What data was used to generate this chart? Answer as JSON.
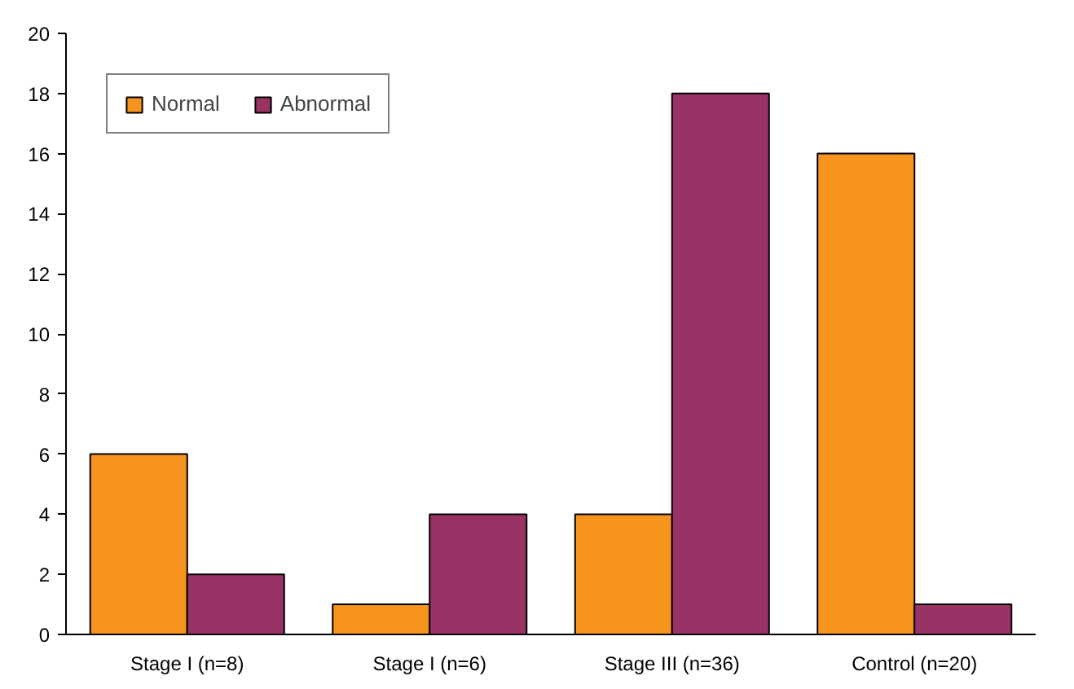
{
  "chart_data": {
    "type": "bar",
    "categories": [
      "Stage I (n=8)",
      "Stage I (n=6)",
      "Stage III (n=36)",
      "Control (n=20)"
    ],
    "series": [
      {
        "name": "Normal",
        "color": "#f7941d",
        "values": [
          6,
          1,
          4,
          16
        ]
      },
      {
        "name": "Abnormal",
        "color": "#993366",
        "values": [
          2,
          4,
          18,
          1
        ]
      }
    ],
    "ylim": [
      0,
      20
    ],
    "yticks": [
      0,
      2,
      4,
      6,
      8,
      10,
      12,
      14,
      16,
      18,
      20
    ],
    "grid": false,
    "legend": "top left"
  }
}
